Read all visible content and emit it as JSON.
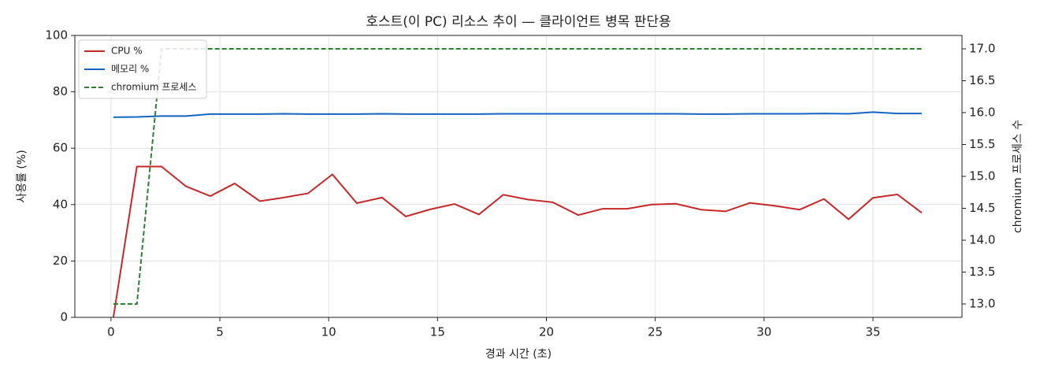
{
  "chart_data": {
    "type": "line",
    "title": "호스트(이 PC) 리소스 추이 — 클라이언트 병목 판단용",
    "xlabel": "경과 시간 (초)",
    "ylabel": "사용률 (%)",
    "y2label": "chromium 프로세스 수",
    "x": [
      0.11,
      1.19,
      2.32,
      3.44,
      4.56,
      5.68,
      6.84,
      7.93,
      9.05,
      10.17,
      11.29,
      12.45,
      13.54,
      14.66,
      15.78,
      16.9,
      18.02,
      19.15,
      20.3,
      21.46,
      22.58,
      23.71,
      24.83,
      25.95,
      27.11,
      28.23,
      29.35,
      30.47,
      31.63,
      32.75,
      33.88,
      35.0,
      36.12,
      37.24
    ],
    "series": [
      {
        "name": "CPU %",
        "color": "#c62828",
        "dash": false,
        "values": [
          0,
          53.5,
          53.5,
          46.5,
          43,
          47.5,
          41.2,
          42.5,
          44,
          50.7,
          40.5,
          42.5,
          35.8,
          38.3,
          40.2,
          36.5,
          43.5,
          41.8,
          40.8,
          36.3,
          38.5,
          38.5,
          40,
          40.3,
          38.2,
          37.6,
          40.6,
          39.6,
          38.2,
          42,
          34.8,
          42.4,
          43.6,
          37.1
        ]
      },
      {
        "name": "메모리 %",
        "color": "#1565c0",
        "dash": false,
        "values": [
          71,
          71.1,
          71.4,
          71.4,
          72.1,
          72.1,
          72.1,
          72.2,
          72.1,
          72.1,
          72.1,
          72.2,
          72.1,
          72.1,
          72.1,
          72.1,
          72.2,
          72.2,
          72.2,
          72.2,
          72.2,
          72.2,
          72.2,
          72.2,
          72.1,
          72.1,
          72.2,
          72.2,
          72.2,
          72.3,
          72.2,
          72.8,
          72.3,
          72.3
        ]
      },
      {
        "name": "chromium 프로세스",
        "color": "#2e7d32",
        "dash": true,
        "axis": "y2",
        "values": [
          13,
          13,
          17,
          17,
          17,
          17,
          17,
          17,
          17,
          17,
          17,
          17,
          17,
          17,
          17,
          17,
          17,
          17,
          17,
          17,
          17,
          17,
          17,
          17,
          17,
          17,
          17,
          17,
          17,
          17,
          17,
          17,
          17,
          17
        ]
      }
    ],
    "xlim": [
      -1.66,
      39.09
    ],
    "xticks": [
      0,
      5,
      10,
      15,
      20,
      25,
      30,
      35
    ],
    "ylim": [
      0,
      100
    ],
    "yticks": [
      0,
      20,
      40,
      60,
      80,
      100
    ],
    "y2lim": [
      12.79,
      17.21
    ],
    "y2ticks": [
      {
        "value": 13,
        "label": "13.0"
      },
      {
        "value": 13.5,
        "label": "13.5"
      },
      {
        "value": 14,
        "label": "14.0"
      },
      {
        "value": 14.5,
        "label": "14.5"
      },
      {
        "value": 15,
        "label": "15.0"
      },
      {
        "value": 15.5,
        "label": "15.5"
      },
      {
        "value": 16,
        "label": "16.0"
      },
      {
        "value": 16.5,
        "label": "16.5"
      },
      {
        "value": 17,
        "label": "17.0"
      }
    ],
    "grid": true,
    "legend": "upper-left"
  }
}
